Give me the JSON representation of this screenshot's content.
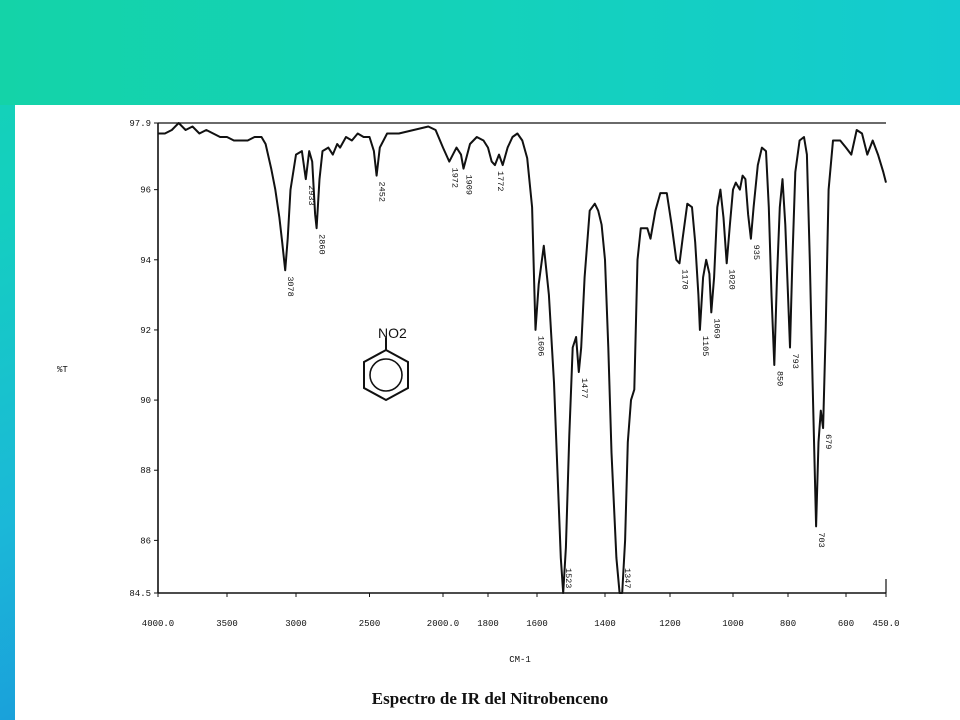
{
  "slide": {
    "caption": "Espectro de IR del Nitrobenceno",
    "colors": {
      "top_band": "#14d2b6",
      "side_gradient_end": "#1a67d6",
      "panel": "#ffffff",
      "ink": "#111111"
    }
  },
  "chart_data": {
    "type": "line",
    "title": "",
    "xlabel": "CM-1",
    "ylabel": "%T",
    "xlim": [
      4000,
      450
    ],
    "ylim": [
      84.5,
      97.9
    ],
    "x_ticks": [
      {
        "value": 4000,
        "label": "4000.0"
      },
      {
        "value": 3500,
        "label": "3500"
      },
      {
        "value": 3000,
        "label": "3000"
      },
      {
        "value": 2500,
        "label": "2500"
      },
      {
        "value": 2000,
        "label": "2000.0"
      },
      {
        "value": 1800,
        "label": "1800"
      },
      {
        "value": 1600,
        "label": "1600"
      },
      {
        "value": 1400,
        "label": "1400"
      },
      {
        "value": 1200,
        "label": "1200"
      },
      {
        "value": 1000,
        "label": "1000"
      },
      {
        "value": 800,
        "label": "800"
      },
      {
        "value": 600,
        "label": "600"
      },
      {
        "value": 450,
        "label": "450.0"
      }
    ],
    "y_ticks": [
      {
        "value": 97.9,
        "label": "97.9"
      },
      {
        "value": 96,
        "label": "96"
      },
      {
        "value": 94,
        "label": "94"
      },
      {
        "value": 92,
        "label": "92"
      },
      {
        "value": 90,
        "label": "90"
      },
      {
        "value": 88,
        "label": "88"
      },
      {
        "value": 86,
        "label": "86"
      },
      {
        "value": 84.5,
        "label": "84.5"
      }
    ],
    "reference_line": 97.9,
    "series": [
      {
        "points": [
          [
            4000,
            97.6
          ],
          [
            3950,
            97.6
          ],
          [
            3900,
            97.7
          ],
          [
            3850,
            97.9
          ],
          [
            3800,
            97.7
          ],
          [
            3750,
            97.8
          ],
          [
            3700,
            97.6
          ],
          [
            3650,
            97.7
          ],
          [
            3600,
            97.6
          ],
          [
            3550,
            97.5
          ],
          [
            3500,
            97.5
          ],
          [
            3450,
            97.4
          ],
          [
            3400,
            97.4
          ],
          [
            3350,
            97.4
          ],
          [
            3300,
            97.5
          ],
          [
            3250,
            97.5
          ],
          [
            3220,
            97.3
          ],
          [
            3180,
            96.6
          ],
          [
            3150,
            96.0
          ],
          [
            3120,
            95.2
          ],
          [
            3100,
            94.5
          ],
          [
            3078,
            93.7
          ],
          [
            3060,
            94.6
          ],
          [
            3040,
            96.0
          ],
          [
            3000,
            97.0
          ],
          [
            2960,
            97.1
          ],
          [
            2933,
            96.3
          ],
          [
            2910,
            97.1
          ],
          [
            2890,
            96.8
          ],
          [
            2870,
            95.3
          ],
          [
            2860,
            94.9
          ],
          [
            2840,
            96.3
          ],
          [
            2820,
            97.1
          ],
          [
            2780,
            97.2
          ],
          [
            2750,
            97.0
          ],
          [
            2720,
            97.3
          ],
          [
            2700,
            97.2
          ],
          [
            2660,
            97.5
          ],
          [
            2620,
            97.4
          ],
          [
            2580,
            97.6
          ],
          [
            2540,
            97.5
          ],
          [
            2500,
            97.5
          ],
          [
            2470,
            97.1
          ],
          [
            2452,
            96.4
          ],
          [
            2430,
            97.2
          ],
          [
            2380,
            97.6
          ],
          [
            2300,
            97.6
          ],
          [
            2200,
            97.7
          ],
          [
            2100,
            97.8
          ],
          [
            2050,
            97.7
          ],
          [
            2000,
            97.2
          ],
          [
            1972,
            96.8
          ],
          [
            1940,
            97.2
          ],
          [
            1920,
            97.0
          ],
          [
            1909,
            96.6
          ],
          [
            1880,
            97.3
          ],
          [
            1850,
            97.5
          ],
          [
            1820,
            97.4
          ],
          [
            1800,
            97.2
          ],
          [
            1785,
            96.8
          ],
          [
            1772,
            96.7
          ],
          [
            1755,
            97.0
          ],
          [
            1740,
            96.7
          ],
          [
            1720,
            97.2
          ],
          [
            1700,
            97.5
          ],
          [
            1680,
            97.6
          ],
          [
            1660,
            97.4
          ],
          [
            1640,
            96.9
          ],
          [
            1620,
            95.5
          ],
          [
            1610,
            93.0
          ],
          [
            1606,
            92.0
          ],
          [
            1595,
            93.3
          ],
          [
            1580,
            94.4
          ],
          [
            1565,
            93.0
          ],
          [
            1550,
            90.5
          ],
          [
            1540,
            88.0
          ],
          [
            1530,
            85.5
          ],
          [
            1523,
            84.5
          ],
          [
            1515,
            85.8
          ],
          [
            1505,
            89.0
          ],
          [
            1495,
            91.5
          ],
          [
            1485,
            91.8
          ],
          [
            1477,
            90.8
          ],
          [
            1470,
            91.5
          ],
          [
            1460,
            93.5
          ],
          [
            1445,
            95.4
          ],
          [
            1430,
            95.6
          ],
          [
            1420,
            95.4
          ],
          [
            1410,
            95.0
          ],
          [
            1400,
            94.0
          ],
          [
            1390,
            91.5
          ],
          [
            1380,
            88.5
          ],
          [
            1365,
            85.5
          ],
          [
            1355,
            84.5
          ],
          [
            1347,
            84.5
          ],
          [
            1338,
            86.0
          ],
          [
            1330,
            88.8
          ],
          [
            1320,
            90.0
          ],
          [
            1310,
            90.3
          ],
          [
            1300,
            94.0
          ],
          [
            1290,
            94.9
          ],
          [
            1270,
            94.9
          ],
          [
            1260,
            94.6
          ],
          [
            1245,
            95.4
          ],
          [
            1230,
            95.9
          ],
          [
            1210,
            95.9
          ],
          [
            1195,
            95.0
          ],
          [
            1180,
            94.0
          ],
          [
            1170,
            93.9
          ],
          [
            1160,
            94.6
          ],
          [
            1145,
            95.6
          ],
          [
            1130,
            95.5
          ],
          [
            1120,
            94.5
          ],
          [
            1110,
            93.0
          ],
          [
            1105,
            92.0
          ],
          [
            1095,
            93.5
          ],
          [
            1085,
            94.0
          ],
          [
            1075,
            93.6
          ],
          [
            1069,
            92.5
          ],
          [
            1060,
            93.5
          ],
          [
            1050,
            95.5
          ],
          [
            1040,
            96.0
          ],
          [
            1030,
            95.2
          ],
          [
            1020,
            93.9
          ],
          [
            1010,
            95.0
          ],
          [
            1000,
            96.0
          ],
          [
            990,
            96.2
          ],
          [
            975,
            96.0
          ],
          [
            965,
            96.4
          ],
          [
            955,
            96.3
          ],
          [
            945,
            95.3
          ],
          [
            935,
            94.6
          ],
          [
            925,
            95.5
          ],
          [
            910,
            96.7
          ],
          [
            895,
            97.2
          ],
          [
            880,
            97.1
          ],
          [
            870,
            95.5
          ],
          [
            860,
            93.0
          ],
          [
            850,
            91.0
          ],
          [
            840,
            93.5
          ],
          [
            830,
            95.5
          ],
          [
            820,
            96.3
          ],
          [
            810,
            95.0
          ],
          [
            800,
            93.0
          ],
          [
            793,
            91.5
          ],
          [
            785,
            94.0
          ],
          [
            775,
            96.5
          ],
          [
            760,
            97.4
          ],
          [
            745,
            97.5
          ],
          [
            735,
            97.0
          ],
          [
            725,
            94.0
          ],
          [
            715,
            90.5
          ],
          [
            703,
            86.4
          ],
          [
            695,
            88.8
          ],
          [
            687,
            89.7
          ],
          [
            679,
            89.2
          ],
          [
            670,
            92.0
          ],
          [
            660,
            96.0
          ],
          [
            645,
            97.4
          ],
          [
            620,
            97.4
          ],
          [
            600,
            97.2
          ],
          [
            580,
            97.0
          ],
          [
            560,
            97.7
          ],
          [
            540,
            97.6
          ],
          [
            520,
            97.0
          ],
          [
            500,
            97.4
          ],
          [
            480,
            97.0
          ],
          [
            460,
            96.5
          ],
          [
            450,
            96.2
          ]
        ]
      }
    ],
    "peak_labels": [
      {
        "x": 3078,
        "y": 93.7,
        "label": "3078"
      },
      {
        "x": 2933,
        "y": 96.3,
        "label": "2933"
      },
      {
        "x": 2860,
        "y": 94.9,
        "label": "2860"
      },
      {
        "x": 2452,
        "y": 96.4,
        "label": "2452"
      },
      {
        "x": 1972,
        "y": 96.8,
        "label": "1972"
      },
      {
        "x": 1909,
        "y": 96.6,
        "label": "1909"
      },
      {
        "x": 1772,
        "y": 96.7,
        "label": "1772"
      },
      {
        "x": 1606,
        "y": 92.0,
        "label": "1606"
      },
      {
        "x": 1523,
        "y": 84.5,
        "label": "1523"
      },
      {
        "x": 1477,
        "y": 90.8,
        "label": "1477"
      },
      {
        "x": 1347,
        "y": 84.5,
        "label": "1347"
      },
      {
        "x": 1170,
        "y": 93.9,
        "label": "1170"
      },
      {
        "x": 1105,
        "y": 92.0,
        "label": "1105"
      },
      {
        "x": 1069,
        "y": 92.5,
        "label": "1069"
      },
      {
        "x": 1020,
        "y": 93.9,
        "label": "1020"
      },
      {
        "x": 935,
        "y": 94.6,
        "label": "935"
      },
      {
        "x": 850,
        "y": 91.0,
        "label": "850"
      },
      {
        "x": 793,
        "y": 91.5,
        "label": "793"
      },
      {
        "x": 703,
        "y": 86.4,
        "label": "703"
      },
      {
        "x": 679,
        "y": 89.2,
        "label": "679"
      }
    ],
    "structure_label": "NO2",
    "grid": false,
    "legend": "none"
  }
}
